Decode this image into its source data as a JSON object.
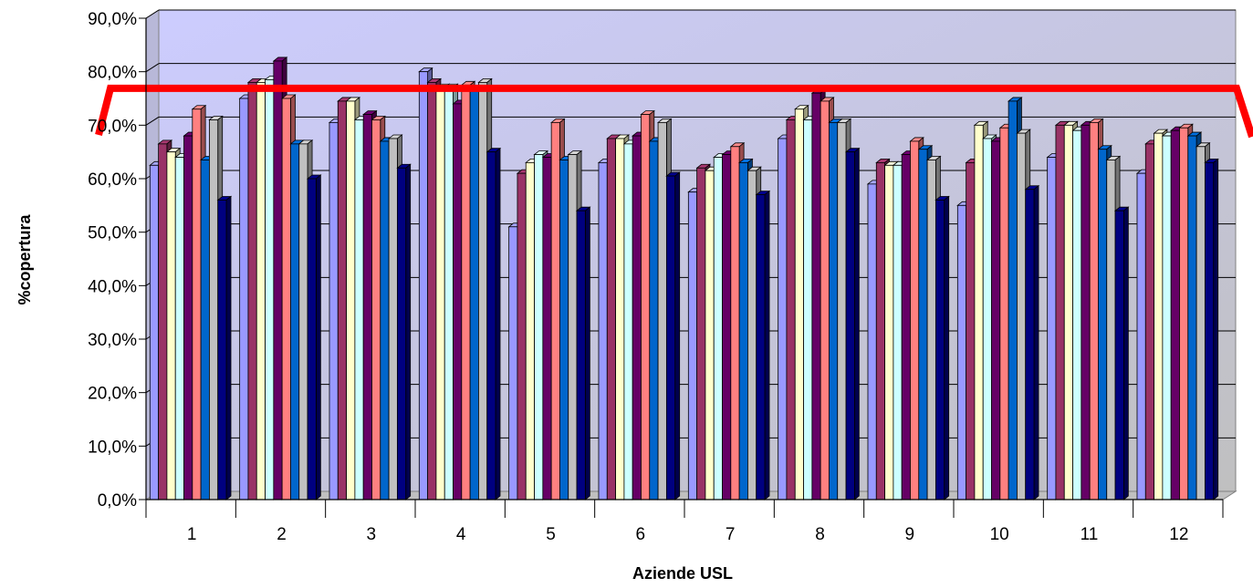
{
  "chart_data": {
    "type": "bar",
    "title": "",
    "xlabel": "Aziende USL",
    "ylabel": "%copertura",
    "ylim": [
      0,
      90
    ],
    "yticks": [
      "0,0%",
      "10,0%",
      "20,0%",
      "30,0%",
      "40,0%",
      "50,0%",
      "60,0%",
      "70,0%",
      "80,0%",
      "90,0%"
    ],
    "categories": [
      "1",
      "2",
      "3",
      "4",
      "5",
      "6",
      "7",
      "8",
      "9",
      "10",
      "11",
      "12"
    ],
    "series": [
      {
        "color": "#9999ff",
        "values": [
          62.5,
          75.0,
          70.5,
          80.0,
          51.0,
          63.0,
          57.5,
          67.5,
          59.0,
          55.0,
          64.0,
          61.0
        ]
      },
      {
        "color": "#993366",
        "values": [
          66.5,
          78.0,
          74.5,
          78.0,
          61.0,
          67.5,
          62.0,
          71.0,
          63.0,
          63.0,
          70.0,
          66.5
        ]
      },
      {
        "color": "#ffffcc",
        "values": [
          65.0,
          78.0,
          74.5,
          77.0,
          63.0,
          67.5,
          61.5,
          73.0,
          62.5,
          70.0,
          70.0,
          68.5
        ]
      },
      {
        "color": "#ccffff",
        "values": [
          64.0,
          78.5,
          71.0,
          77.0,
          64.5,
          66.5,
          64.0,
          71.0,
          62.5,
          67.5,
          69.0,
          68.0
        ]
      },
      {
        "color": "#660066",
        "values": [
          68.0,
          82.0,
          72.0,
          74.0,
          64.0,
          68.0,
          64.5,
          76.0,
          64.5,
          67.0,
          70.0,
          69.0
        ]
      },
      {
        "color": "#ff8080",
        "values": [
          73.0,
          75.0,
          71.0,
          77.5,
          70.5,
          72.0,
          66.0,
          74.5,
          67.0,
          69.5,
          70.5,
          69.5
        ]
      },
      {
        "color": "#0066cc",
        "values": [
          63.5,
          66.5,
          67.0,
          76.5,
          63.5,
          67.0,
          63.0,
          70.5,
          65.5,
          74.5,
          65.5,
          68.0
        ]
      },
      {
        "color": "#c0c0c0",
        "values": [
          71.0,
          66.5,
          67.5,
          78.0,
          64.5,
          70.5,
          61.5,
          70.5,
          63.5,
          68.5,
          63.5,
          66.0
        ]
      },
      {
        "color": "#000080",
        "values": [
          56.0,
          60.0,
          62.0,
          65.0,
          54.0,
          60.5,
          57.0,
          65.0,
          56.0,
          58.0,
          54.0,
          63.0
        ]
      }
    ],
    "target_line": {
      "value": 74.5,
      "color": "#ff0000"
    },
    "plot_background": [
      "#ccccff",
      "#c0c0c0"
    ],
    "gridlines": true,
    "legend": "none"
  }
}
